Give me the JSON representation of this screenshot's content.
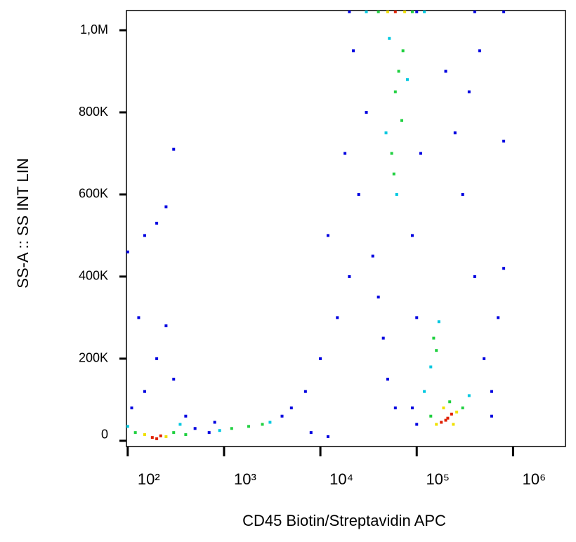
{
  "chart_data": {
    "type": "scatter",
    "x_label": "CD45 Biotin/Streptavidin APC",
    "y_label": "SS-A :: SS INT LIN",
    "xscale": "log",
    "xlim": [
      97,
      3500000
    ],
    "ylim": [
      -14000,
      1048000
    ],
    "xticks": [
      {
        "value": 100,
        "label": "10²"
      },
      {
        "value": 1000,
        "label": "10³"
      },
      {
        "value": 10000,
        "label": "10⁴"
      },
      {
        "value": 100000,
        "label": "10⁵"
      },
      {
        "value": 1000000,
        "label": "10⁶"
      }
    ],
    "yticks": [
      0,
      {
        "value": 200000,
        "label": "200K"
      },
      {
        "value": 400000,
        "label": "400K"
      },
      {
        "value": 600000,
        "label": "600K"
      },
      {
        "value": 800000,
        "label": "800K"
      },
      {
        "value": 1000000,
        "label": "1,0M"
      }
    ],
    "series": [
      {
        "color": "#0000e0",
        "x": [
          110,
          150,
          200,
          300,
          250,
          130,
          400,
          500,
          700,
          800,
          4000,
          5000,
          7000,
          10000,
          15000,
          20000,
          12000,
          25000,
          18000,
          30000,
          22000,
          35000,
          40000,
          45000,
          50000,
          60000,
          90000,
          100000,
          110000,
          200000,
          250000,
          300000,
          400000,
          500000,
          600000,
          700000,
          450000,
          350000,
          800000,
          150,
          200,
          300,
          250,
          100,
          100000,
          20000,
          400000,
          800000,
          12000,
          8000,
          100000,
          90000,
          600000,
          800000
        ],
        "y": [
          80000,
          120000,
          200000,
          150000,
          280000,
          300000,
          60000,
          30000,
          20000,
          45000,
          60000,
          80000,
          120000,
          200000,
          300000,
          400000,
          500000,
          600000,
          700000,
          800000,
          950000,
          450000,
          350000,
          250000,
          150000,
          80000,
          500000,
          300000,
          700000,
          900000,
          750000,
          600000,
          400000,
          200000,
          120000,
          300000,
          950000,
          850000,
          730000,
          500000,
          530000,
          710000,
          570000,
          460000,
          1045000,
          1045000,
          1045000,
          1045000,
          10000,
          20000,
          40000,
          80000,
          60000,
          420000
        ]
      },
      {
        "color": "#00c8e0",
        "x": [
          100,
          350,
          900,
          3000,
          62000,
          48000,
          80000,
          52000,
          140000,
          170000,
          120000,
          350000,
          30000,
          120000
        ],
        "y": [
          35000,
          40000,
          25000,
          45000,
          600000,
          750000,
          880000,
          980000,
          180000,
          290000,
          120000,
          110000,
          1045000,
          1045000
        ]
      },
      {
        "color": "#20d040",
        "x": [
          120,
          300,
          400,
          1200,
          1800,
          2500,
          140000,
          300000,
          220000,
          60000,
          70000,
          55000,
          65000,
          58000,
          72000,
          150000,
          160000,
          40000,
          90000
        ],
        "y": [
          20000,
          20000,
          15000,
          30000,
          35000,
          40000,
          60000,
          80000,
          95000,
          850000,
          780000,
          700000,
          900000,
          650000,
          950000,
          250000,
          220000,
          1045000,
          1045000
        ]
      },
      {
        "color": "#f0e000",
        "x": [
          150,
          250,
          160000,
          260000,
          190000,
          240000,
          50000,
          75000
        ],
        "y": [
          15000,
          10000,
          40000,
          70000,
          80000,
          40000,
          1045000,
          1045000
        ]
      },
      {
        "color": "#e02000",
        "x": [
          180,
          220,
          200,
          200000,
          230000,
          180000,
          210000,
          60000
        ],
        "y": [
          8000,
          12000,
          5000,
          50000,
          65000,
          45000,
          55000,
          1045000
        ]
      }
    ]
  }
}
